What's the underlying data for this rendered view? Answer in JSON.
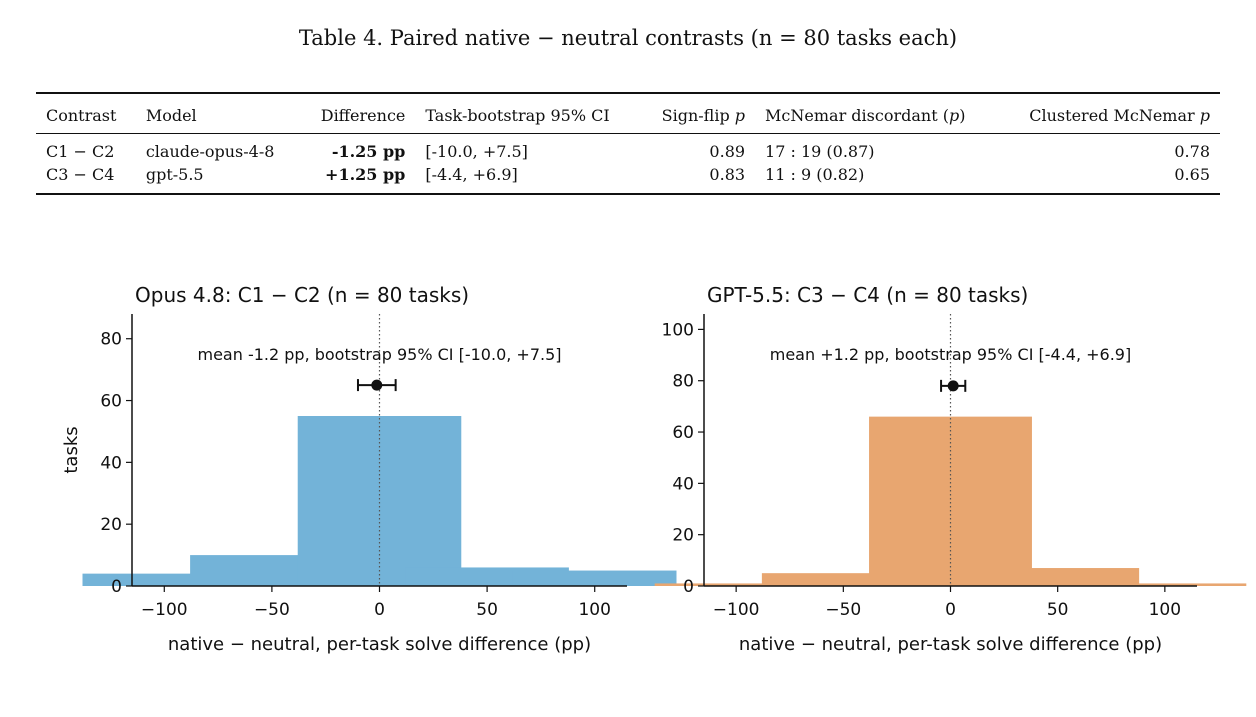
{
  "table": {
    "caption": "Table 4.  Paired native − neutral contrasts (n = 80 tasks each)",
    "headers": [
      "Contrast",
      "Model",
      "Difference",
      "Task-bootstrap 95% CI",
      "Sign-flip p",
      "McNemar discordant (p)",
      "Clustered McNemar p"
    ],
    "rows": [
      {
        "contrast": "C1 − C2",
        "model": "claude-opus-4-8",
        "difference": "-1.25 pp",
        "ci": "[-10.0, +7.5]",
        "signflip": "0.89",
        "mcnemar": "17 : 19 (0.87)",
        "clustered": "0.78"
      },
      {
        "contrast": "C3 − C4",
        "model": "gpt-5.5",
        "difference": "+1.25 pp",
        "ci": "[-4.4, +6.9]",
        "signflip": "0.83",
        "mcnemar": "11 : 9 (0.82)",
        "clustered": "0.65"
      }
    ]
  },
  "chart_data": [
    {
      "type": "bar",
      "title": "Opus 4.8: C1 − C2   (n = 80 tasks)",
      "xlabel": "native − neutral, per-task solve difference (pp)",
      "ylabel": "tasks",
      "x": [
        -100,
        -50,
        0,
        50,
        100
      ],
      "values": [
        4,
        10,
        55,
        6,
        5
      ],
      "xlim": [
        -115,
        115
      ],
      "ylim": [
        0,
        88
      ],
      "xticks": [
        -100,
        -50,
        0,
        50,
        100
      ],
      "yticks": [
        0,
        20,
        40,
        60,
        80
      ],
      "annotation": "mean -1.2 pp, bootstrap 95% CI [-10.0, +7.5]",
      "mean": -1.25,
      "ci": [
        -10.0,
        7.5
      ],
      "marker_y": 65,
      "color": "#73b3d8"
    },
    {
      "type": "bar",
      "title": "GPT-5.5: C3 − C4   (n = 80 tasks)",
      "xlabel": "native − neutral, per-task solve difference (pp)",
      "ylabel": "",
      "x": [
        -100,
        -50,
        0,
        50,
        100
      ],
      "values": [
        1,
        5,
        66,
        7,
        1
      ],
      "xlim": [
        -115,
        115
      ],
      "ylim": [
        0,
        106
      ],
      "xticks": [
        -100,
        -50,
        0,
        50,
        100
      ],
      "yticks": [
        0,
        20,
        40,
        60,
        80,
        100
      ],
      "annotation": "mean +1.2 pp, bootstrap 95% CI [-4.4, +6.9]",
      "mean": 1.25,
      "ci": [
        -4.4,
        6.9
      ],
      "marker_y": 78,
      "color": "#e8a670"
    }
  ]
}
